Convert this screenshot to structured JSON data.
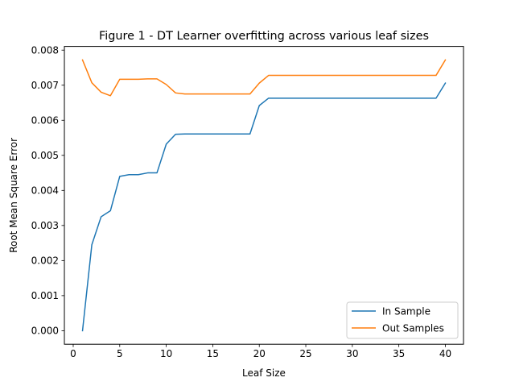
{
  "chart_data": {
    "type": "line",
    "title": "Figure 1 - DT Learner overfitting across various leaf sizes",
    "xlabel": "Leaf Size",
    "ylabel": "Root Mean Square Error",
    "xlim": [
      -0.95,
      41.95
    ],
    "ylim": [
      -0.000386,
      0.008106
    ],
    "xticks": [
      0,
      5,
      10,
      15,
      20,
      25,
      30,
      35,
      40
    ],
    "xtick_labels": [
      "0",
      "5",
      "10",
      "15",
      "20",
      "25",
      "30",
      "35",
      "40"
    ],
    "yticks": [
      0.0,
      0.001,
      0.002,
      0.003,
      0.004,
      0.005,
      0.006,
      0.007,
      0.008
    ],
    "ytick_labels": [
      "0.000",
      "0.001",
      "0.002",
      "0.003",
      "0.004",
      "0.005",
      "0.006",
      "0.007",
      "0.008"
    ],
    "grid": false,
    "legend_position": "lower-right",
    "x": [
      1,
      2,
      3,
      4,
      5,
      6,
      7,
      8,
      9,
      10,
      11,
      12,
      13,
      14,
      15,
      16,
      17,
      18,
      19,
      20,
      21,
      22,
      23,
      24,
      25,
      26,
      27,
      28,
      29,
      30,
      31,
      32,
      33,
      34,
      35,
      36,
      37,
      38,
      39,
      40
    ],
    "series": [
      {
        "name": "In Sample",
        "color": "#1f77b4",
        "values": [
          0.0,
          0.00245,
          0.00325,
          0.00342,
          0.0044,
          0.00445,
          0.00445,
          0.0045,
          0.0045,
          0.00532,
          0.0056,
          0.00561,
          0.00561,
          0.00561,
          0.00561,
          0.00561,
          0.00561,
          0.00561,
          0.00561,
          0.00642,
          0.00663,
          0.00663,
          0.00663,
          0.00663,
          0.00663,
          0.00663,
          0.00663,
          0.00663,
          0.00663,
          0.00663,
          0.00663,
          0.00663,
          0.00663,
          0.00663,
          0.00663,
          0.00663,
          0.00663,
          0.00663,
          0.00663,
          0.00706
        ]
      },
      {
        "name": "Out Samples",
        "color": "#ff7f0e",
        "values": [
          0.00772,
          0.00707,
          0.0068,
          0.0067,
          0.00717,
          0.00717,
          0.00717,
          0.00718,
          0.00718,
          0.00702,
          0.00678,
          0.00675,
          0.00675,
          0.00675,
          0.00675,
          0.00675,
          0.00675,
          0.00675,
          0.00675,
          0.00706,
          0.00728,
          0.00728,
          0.00728,
          0.00728,
          0.00728,
          0.00728,
          0.00728,
          0.00728,
          0.00728,
          0.00728,
          0.00728,
          0.00728,
          0.00728,
          0.00728,
          0.00728,
          0.00728,
          0.00728,
          0.00728,
          0.00728,
          0.00772
        ]
      }
    ]
  }
}
